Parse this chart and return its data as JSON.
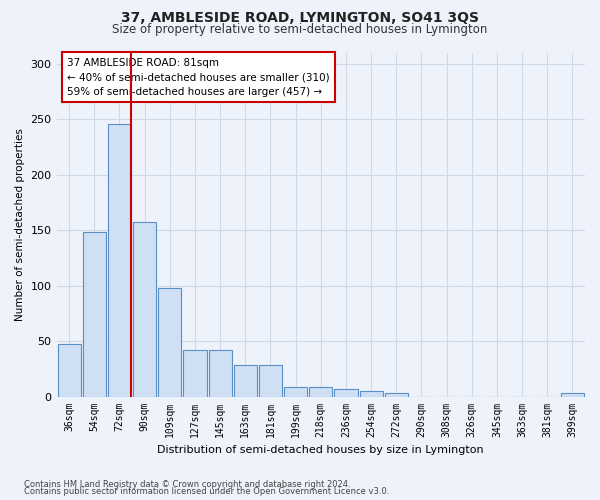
{
  "title": "37, AMBLESIDE ROAD, LYMINGTON, SO41 3QS",
  "subtitle": "Size of property relative to semi-detached houses in Lymington",
  "xlabel": "Distribution of semi-detached houses by size in Lymington",
  "ylabel": "Number of semi-detached properties",
  "bar_labels": [
    "36sqm",
    "54sqm",
    "72sqm",
    "90sqm",
    "109sqm",
    "127sqm",
    "145sqm",
    "163sqm",
    "181sqm",
    "199sqm",
    "218sqm",
    "236sqm",
    "254sqm",
    "272sqm",
    "290sqm",
    "308sqm",
    "326sqm",
    "345sqm",
    "363sqm",
    "381sqm",
    "399sqm"
  ],
  "bar_values": [
    47,
    148,
    246,
    157,
    98,
    42,
    42,
    28,
    28,
    9,
    9,
    7,
    5,
    3,
    0,
    0,
    0,
    0,
    0,
    0,
    3
  ],
  "bar_color": "#cfe0f5",
  "bar_edge_color": "#5a8fc5",
  "vline_color": "#cc0000",
  "annotation_text": "37 AMBLESIDE ROAD: 81sqm\n← 40% of semi-detached houses are smaller (310)\n59% of semi-detached houses are larger (457) →",
  "annotation_box_color": "#ffffff",
  "annotation_box_edge_color": "#cc0000",
  "ylim": [
    0,
    310
  ],
  "yticks": [
    0,
    50,
    100,
    150,
    200,
    250,
    300
  ],
  "footer1": "Contains HM Land Registry data © Crown copyright and database right 2024.",
  "footer2": "Contains public sector information licensed under the Open Government Licence v3.0.",
  "bg_color": "#eef2fa",
  "plot_bg_color": "#eef2fa",
  "grid_color": "#d0d8e8"
}
